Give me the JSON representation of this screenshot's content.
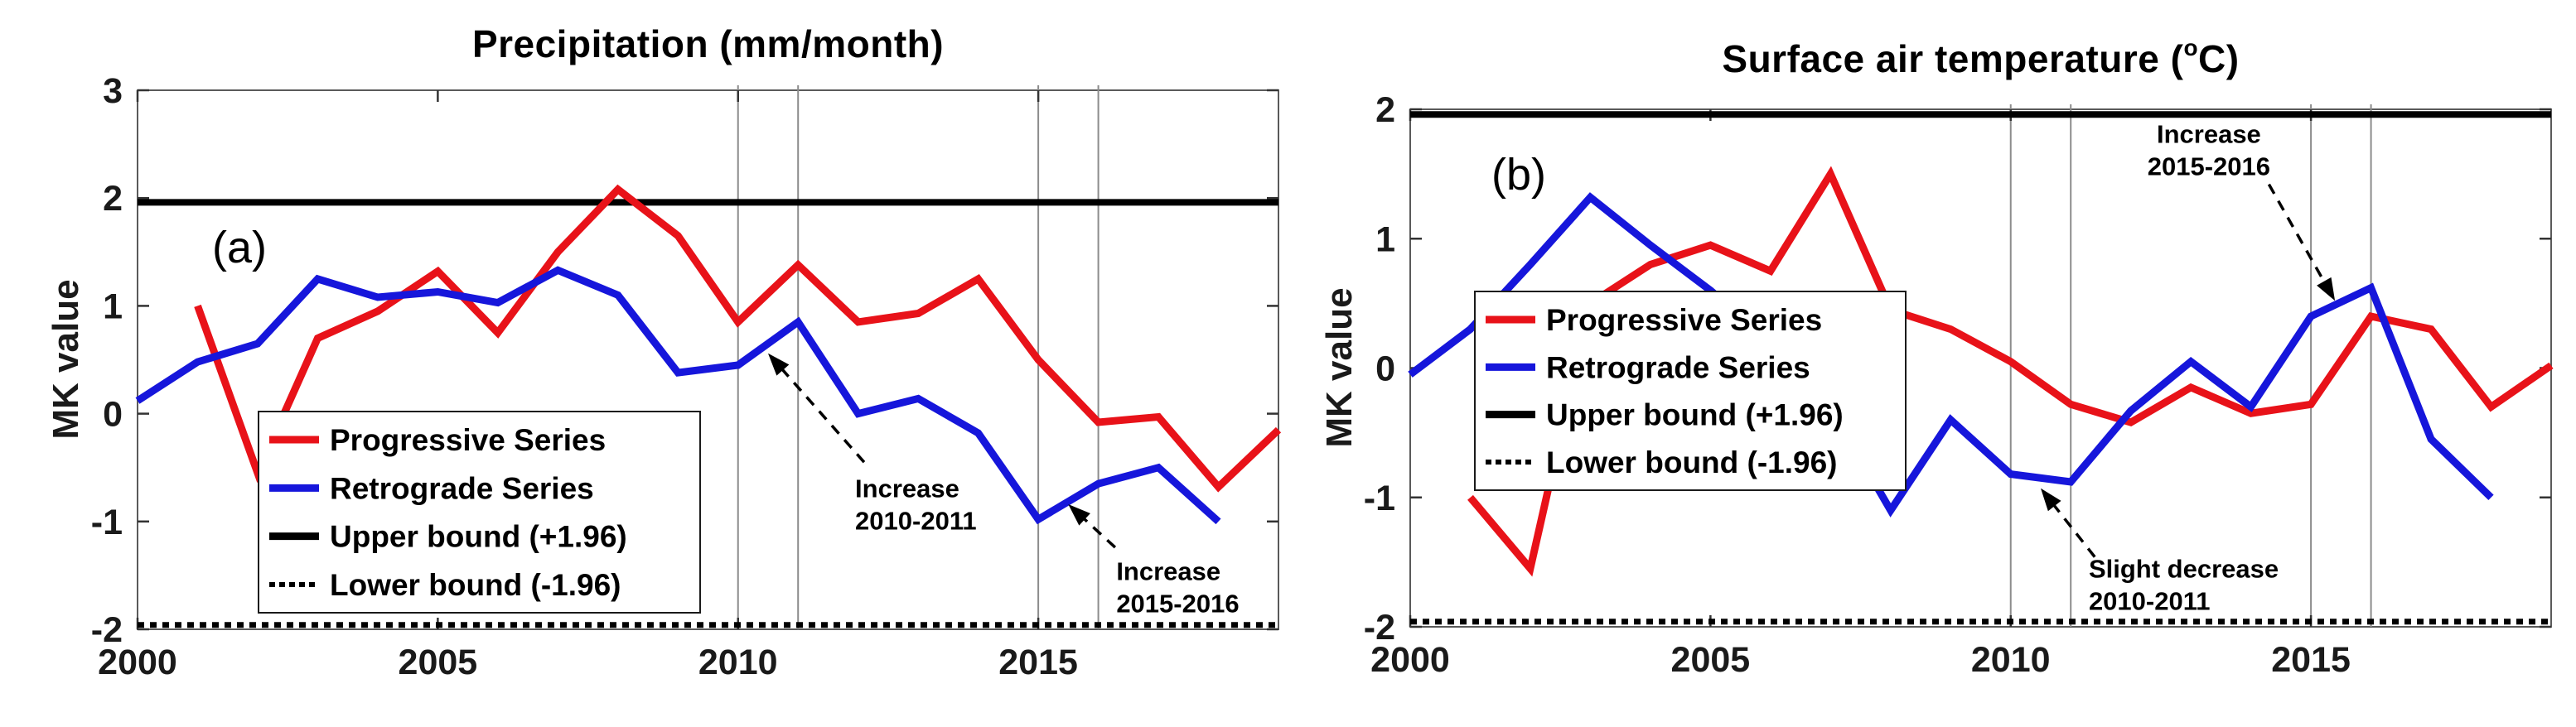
{
  "page": {
    "background": "#FFFFFF"
  },
  "chart_data": [
    {
      "id": "precipitation-mk-test",
      "type": "line",
      "panel_tag": "(a)",
      "title": {
        "pre": "Precipitation (mm/month)",
        "sup": "",
        "post": ""
      },
      "y_axis_label": "MK value",
      "x_range": [
        2000,
        2019
      ],
      "y_range": [
        -2,
        3
      ],
      "x_ticks": [
        2000,
        2005,
        2010,
        2015
      ],
      "y_ticks": [
        3,
        2,
        1,
        0,
        -1,
        -2
      ],
      "grid": "off",
      "highlight_years": [
        2010,
        2011,
        2015,
        2016
      ],
      "upper_bound": 1.96,
      "lower_bound": -1.96,
      "colors": {
        "progressive": "#E81219",
        "retrograde": "#1616DB",
        "bounds": "#000000"
      },
      "series": [
        {
          "name": "Progressive Series",
          "color_key": "progressive",
          "points": [
            [
              2001,
              1.0
            ],
            [
              2002,
              -0.55
            ],
            [
              2003,
              0.7
            ],
            [
              2004,
              0.95
            ],
            [
              2005,
              1.32
            ],
            [
              2006,
              0.75
            ],
            [
              2007,
              1.5
            ],
            [
              2008,
              2.08
            ],
            [
              2009,
              1.65
            ],
            [
              2010,
              0.85
            ],
            [
              2011,
              1.38
            ],
            [
              2012,
              0.85
            ],
            [
              2013,
              0.93
            ],
            [
              2014,
              1.25
            ],
            [
              2015,
              0.5
            ],
            [
              2016,
              -0.08
            ],
            [
              2017,
              -0.03
            ],
            [
              2018,
              -0.68
            ],
            [
              2019,
              -0.15
            ]
          ]
        },
        {
          "name": "Retrograde Series",
          "color_key": "retrograde",
          "points": [
            [
              2000,
              0.12
            ],
            [
              2001,
              0.48
            ],
            [
              2002,
              0.65
            ],
            [
              2003,
              1.25
            ],
            [
              2004,
              1.08
            ],
            [
              2005,
              1.13
            ],
            [
              2006,
              1.03
            ],
            [
              2007,
              1.33
            ],
            [
              2008,
              1.1
            ],
            [
              2009,
              0.38
            ],
            [
              2010,
              0.45
            ],
            [
              2011,
              0.85
            ],
            [
              2012,
              0.0
            ],
            [
              2013,
              0.14
            ],
            [
              2014,
              -0.18
            ],
            [
              2015,
              -0.98
            ],
            [
              2016,
              -0.65
            ],
            [
              2017,
              -0.5
            ],
            [
              2018,
              -1.0
            ]
          ]
        }
      ],
      "legend": [
        {
          "label": "Progressive Series",
          "color_key": "progressive",
          "line": "solid"
        },
        {
          "label": "Retrograde Series",
          "color_key": "retrograde",
          "line": "solid"
        },
        {
          "label": "Upper bound (+1.96)",
          "color_key": "bounds",
          "line": "solid"
        },
        {
          "label": "Lower bound (-1.96)",
          "color_key": "bounds",
          "line": "dotted"
        }
      ],
      "annotations": [
        {
          "lines": [
            "Increase",
            "2010-2011"
          ],
          "align": "left",
          "text_anchor": [
            2011.95,
            -0.69
          ],
          "arrow_from": [
            2012.1,
            -0.45
          ],
          "arrow_to": [
            2010.5,
            0.56
          ]
        },
        {
          "lines": [
            "Increase",
            "2015-2016"
          ],
          "align": "left",
          "text_anchor": [
            2016.3,
            -1.46
          ],
          "arrow_from": [
            2016.28,
            -1.24
          ],
          "arrow_to": [
            2015.5,
            -0.84
          ]
        }
      ]
    },
    {
      "id": "surface-air-temperature-mk-test",
      "type": "line",
      "panel_tag": "(b)",
      "title": {
        "pre": "Surface air temperature (",
        "sup": "o",
        "post": "C)"
      },
      "y_axis_label": "MK value",
      "x_range": [
        2000,
        2019
      ],
      "y_range": [
        -2,
        2
      ],
      "x_ticks": [
        2000,
        2005,
        2010,
        2015
      ],
      "y_ticks": [
        2,
        1,
        0,
        -1,
        -2
      ],
      "grid": "off",
      "highlight_years": [
        2010,
        2011,
        2015,
        2016
      ],
      "upper_bound": 1.96,
      "lower_bound": -1.96,
      "colors": {
        "progressive": "#E81219",
        "retrograde": "#1616DB",
        "bounds": "#000000"
      },
      "series": [
        {
          "name": "Progressive Series",
          "color_key": "progressive",
          "points": [
            [
              2001,
              -1.0
            ],
            [
              2002,
              -1.55
            ],
            [
              2003,
              0.5
            ],
            [
              2004,
              0.8
            ],
            [
              2005,
              0.95
            ],
            [
              2006,
              0.75
            ],
            [
              2007,
              1.5
            ],
            [
              2008,
              0.45
            ],
            [
              2009,
              0.3
            ],
            [
              2010,
              0.05
            ],
            [
              2011,
              -0.28
            ],
            [
              2012,
              -0.42
            ],
            [
              2013,
              -0.15
            ],
            [
              2014,
              -0.35
            ],
            [
              2015,
              -0.28
            ],
            [
              2016,
              0.4
            ],
            [
              2017,
              0.3
            ],
            [
              2018,
              -0.3
            ],
            [
              2019,
              0.02
            ]
          ]
        },
        {
          "name": "Retrograde Series",
          "color_key": "retrograde",
          "points": [
            [
              2000,
              -0.05
            ],
            [
              2001,
              0.3
            ],
            [
              2002,
              0.8
            ],
            [
              2003,
              1.32
            ],
            [
              2004,
              0.95
            ],
            [
              2005,
              0.6
            ],
            [
              2006,
              0.2
            ],
            [
              2007,
              -0.3
            ],
            [
              2008,
              -1.1
            ],
            [
              2009,
              -0.4
            ],
            [
              2010,
              -0.82
            ],
            [
              2011,
              -0.88
            ],
            [
              2012,
              -0.33
            ],
            [
              2013,
              0.05
            ],
            [
              2014,
              -0.3
            ],
            [
              2015,
              0.4
            ],
            [
              2016,
              0.62
            ],
            [
              2017,
              -0.55
            ],
            [
              2018,
              -1.0
            ]
          ]
        }
      ],
      "legend": [
        {
          "label": "Progressive Series",
          "color_key": "progressive",
          "line": "solid"
        },
        {
          "label": "Retrograde Series",
          "color_key": "retrograde",
          "line": "solid"
        },
        {
          "label": "Upper bound (+1.96)",
          "color_key": "bounds",
          "line": "solid"
        },
        {
          "label": "Lower bound (-1.96)",
          "color_key": "bounds",
          "line": "dotted"
        }
      ],
      "annotations": [
        {
          "lines": [
            "Increase",
            "2015-2016"
          ],
          "align": "center",
          "text_anchor": [
            2013.3,
            1.81
          ],
          "arrow_from": [
            2014.3,
            1.42
          ],
          "arrow_to": [
            2015.4,
            0.52
          ]
        },
        {
          "lines": [
            "Slight decrease",
            "2010-2011"
          ],
          "align": "left",
          "text_anchor": [
            2011.3,
            -1.55
          ],
          "arrow_from": [
            2011.4,
            -1.46
          ],
          "arrow_to": [
            2010.5,
            -0.93
          ]
        }
      ]
    }
  ]
}
